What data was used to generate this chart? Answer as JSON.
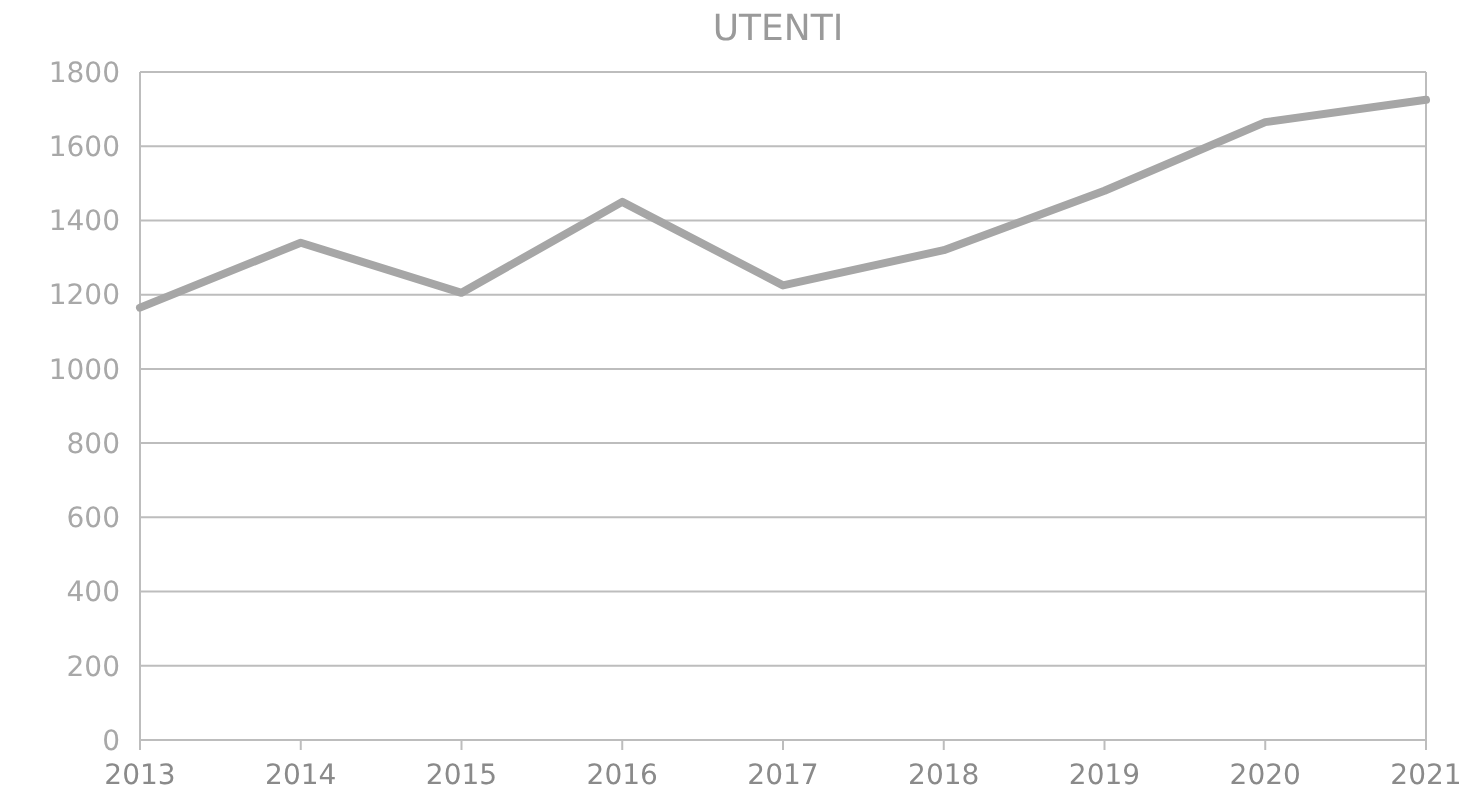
{
  "chart_data": {
    "type": "line",
    "title": "UTENTI",
    "categories": [
      "2013",
      "2014",
      "2015",
      "2016",
      "2017",
      "2018",
      "2019",
      "2020",
      "2021"
    ],
    "series": [
      {
        "color": "#a6a6a6",
        "values": [
          1165,
          1340,
          1205,
          1450,
          1225,
          1320,
          1480,
          1665,
          1725
        ]
      }
    ],
    "ylim": [
      0,
      1800
    ],
    "yticks": [
      0,
      200,
      400,
      600,
      800,
      1000,
      1200,
      1400,
      1600,
      1800
    ],
    "grid": "y"
  }
}
